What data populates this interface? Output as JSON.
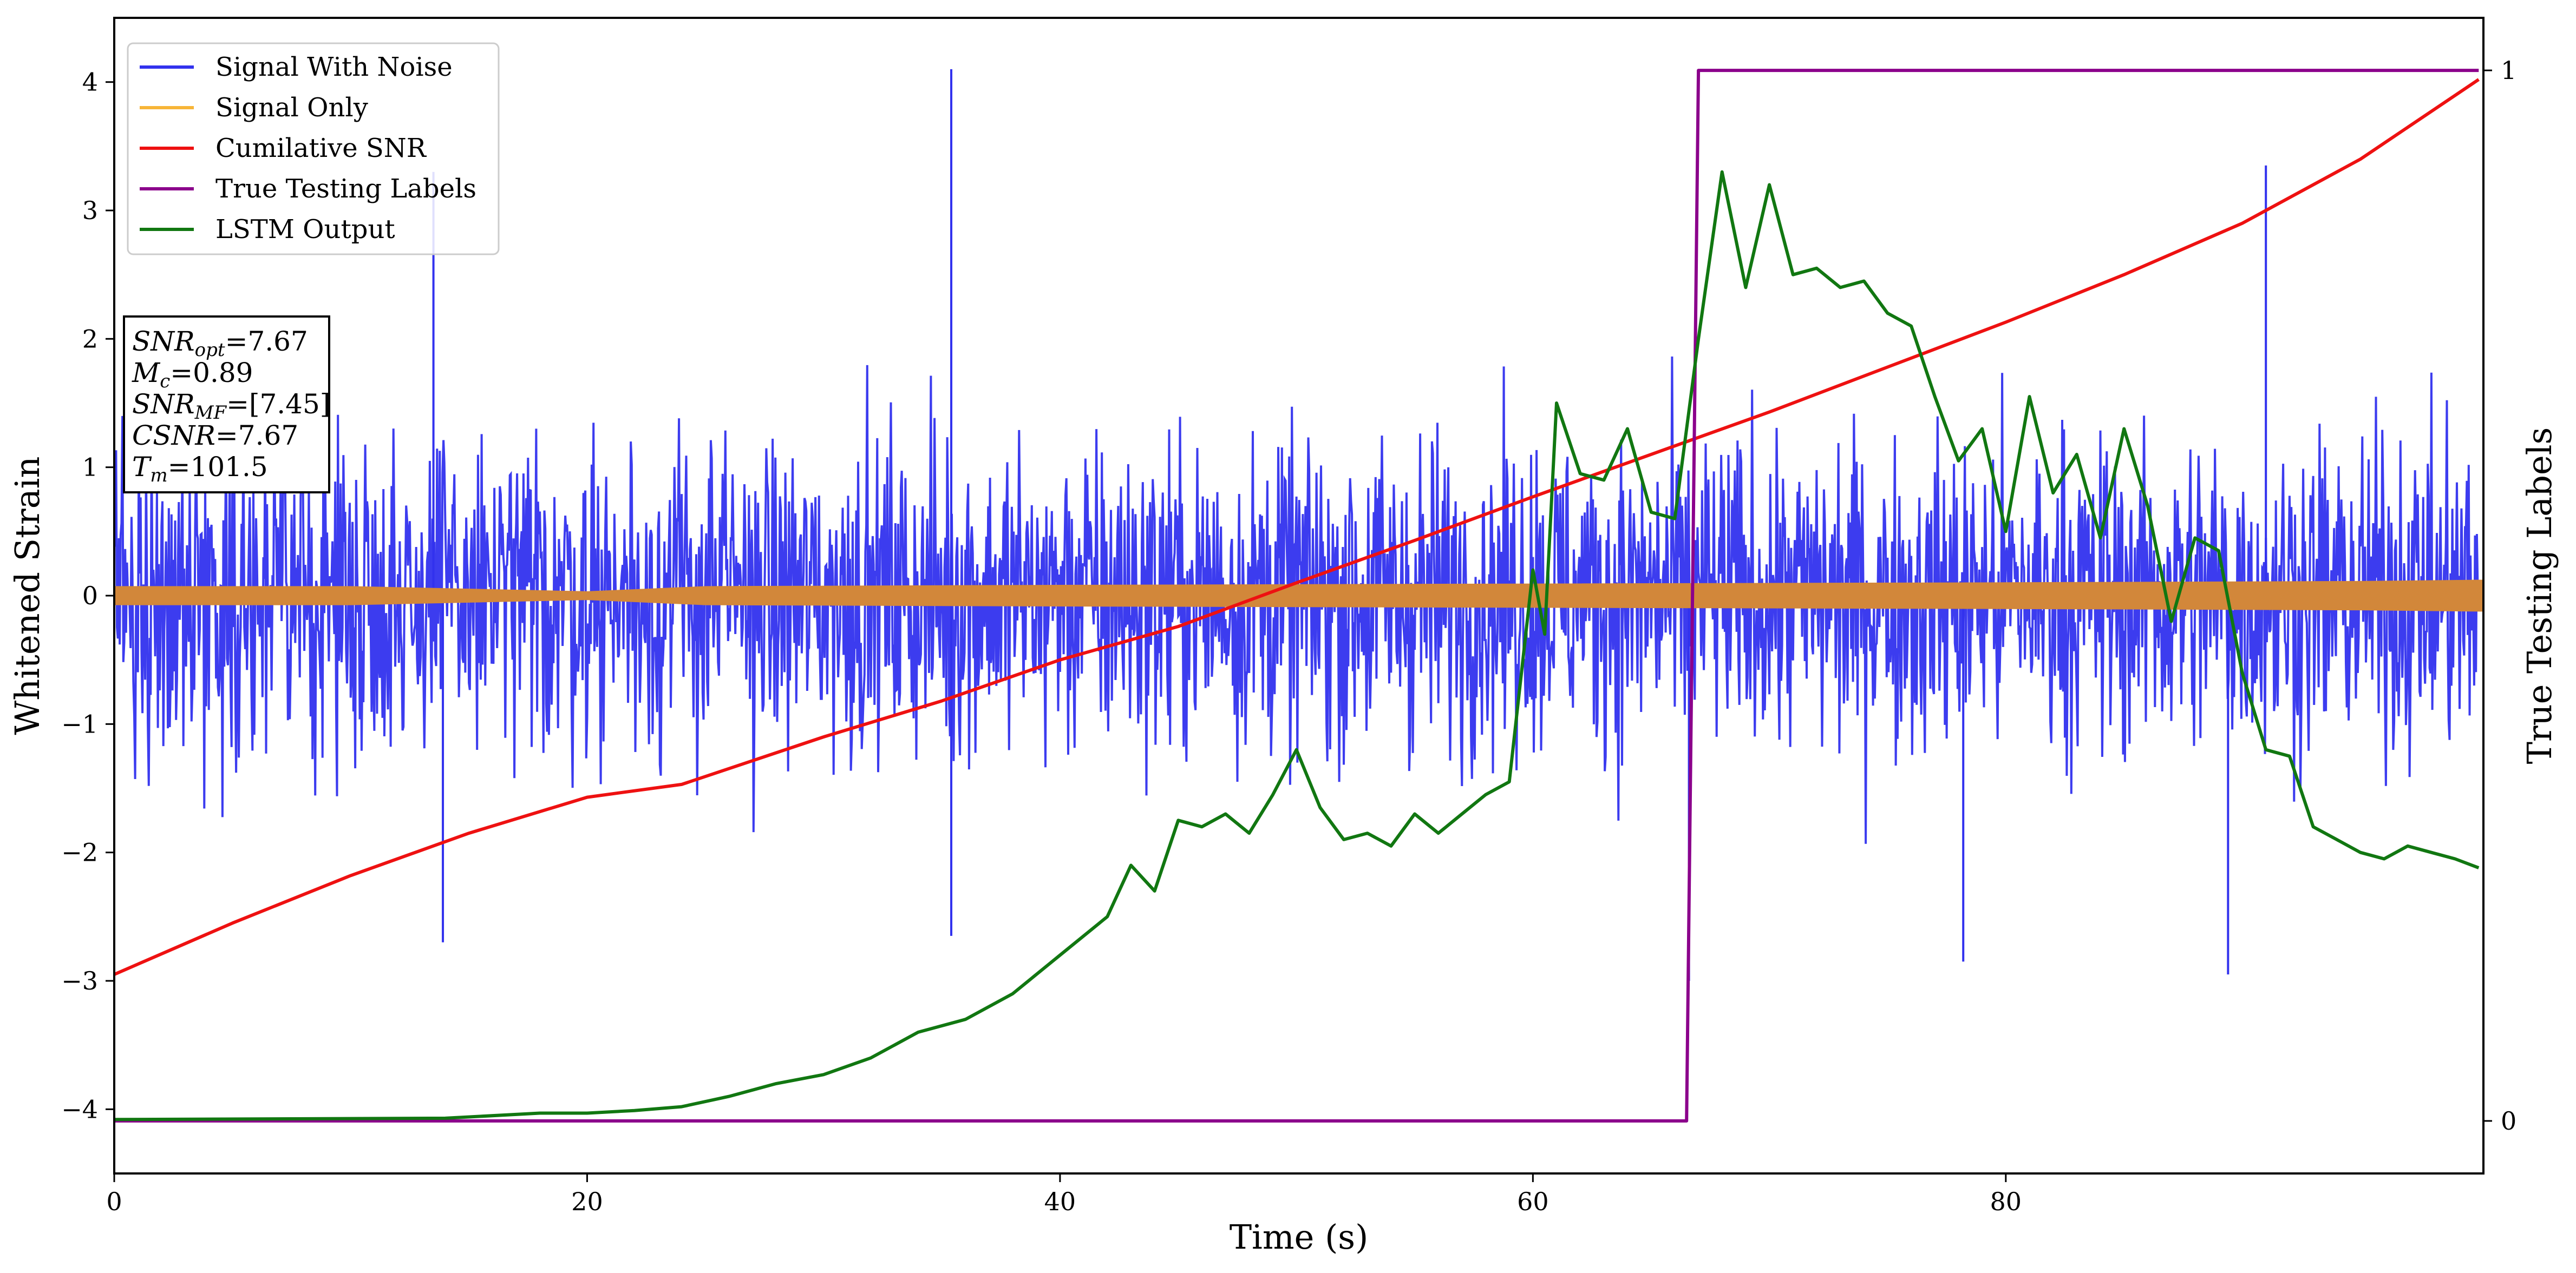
{
  "chart_data": {
    "type": "line",
    "xlabel": "Time (s)",
    "ylabel_left": "Whitened Strain",
    "ylabel_right": "True Testing Labels",
    "xlim": [
      0,
      100.2
    ],
    "ylim_left": [
      -4.5,
      4.5
    ],
    "ylim_right": [
      -0.05,
      1.05
    ],
    "x_ticks": [
      0,
      20,
      40,
      60,
      80
    ],
    "y_ticks_left": [
      -4,
      -3,
      -2,
      -1,
      0,
      1,
      2,
      3,
      4
    ],
    "y_ticks_right": [
      0,
      1
    ],
    "legend_position": "top-left",
    "legend": [
      {
        "label": "Signal With Noise",
        "color": "#3232ee"
      },
      {
        "label": "Signal Only",
        "color": "#f7b538"
      },
      {
        "label": "Cumilative SNR",
        "color": "#ee1111"
      },
      {
        "label": "True Testing Labels",
        "color": "#8b008b"
      },
      {
        "label": "LSTM Output",
        "color": "#117711"
      }
    ],
    "info_box": {
      "snr_opt_label": "SNR",
      "snr_opt_sub": "opt",
      "snr_opt_value": "=7.67",
      "mc_label": "M",
      "mc_sub": "c",
      "mc_value": "=0.89",
      "snr_mf_label": "SNR",
      "snr_mf_sub": "MF",
      "snr_mf_value": "=[7.45]",
      "csnr_label": "CSNR",
      "csnr_value": "=7.67",
      "tm_label": "T",
      "tm_sub": "m",
      "tm_value": "=101.5"
    },
    "series": [
      {
        "name": "Signal With Noise",
        "axis": "left",
        "style": "dense-noise",
        "color": "#3232ee",
        "typical_range": [
          -2.2,
          2.2
        ],
        "spikes": [
          {
            "x": 35.4,
            "y": 4.1
          },
          {
            "x": 91.0,
            "y": 3.35
          },
          {
            "x": 13.5,
            "y": 3.3
          },
          {
            "x": 35.4,
            "y": -2.65
          },
          {
            "x": 13.9,
            "y": -2.7
          },
          {
            "x": 66.6,
            "y": -3.0
          },
          {
            "x": 89.4,
            "y": -2.95
          },
          {
            "x": 78.2,
            "y": -2.85
          }
        ]
      },
      {
        "name": "Signal Only",
        "axis": "left",
        "style": "envelope",
        "color": "#f7b538",
        "blend_color": "#d2873a",
        "x": [
          0,
          10,
          20,
          25,
          40,
          60,
          80,
          95,
          100.2
        ],
        "amplitude": [
          0.07,
          0.07,
          0.03,
          0.07,
          0.08,
          0.09,
          0.1,
          0.11,
          0.12
        ]
      },
      {
        "name": "Cumilative SNR",
        "axis": "left",
        "color": "#ee1111",
        "x": [
          0,
          5,
          10,
          15,
          20,
          24,
          30,
          35,
          40,
          45,
          50,
          55,
          60,
          65,
          70,
          75,
          80,
          85,
          90,
          95,
          100
        ],
        "y": [
          -2.95,
          -2.55,
          -2.18,
          -1.85,
          -1.57,
          -1.47,
          -1.1,
          -0.82,
          -0.5,
          -0.24,
          0.1,
          0.43,
          0.77,
          1.1,
          1.43,
          1.78,
          2.13,
          2.5,
          2.9,
          3.4,
          4.02
        ]
      },
      {
        "name": "True Testing Labels",
        "axis": "right",
        "color": "#8b008b",
        "x": [
          0,
          66.5,
          67.0,
          100
        ],
        "y": [
          0,
          0,
          1,
          1
        ]
      },
      {
        "name": "LSTM Output",
        "axis": "left",
        "color": "#117711",
        "x": [
          0,
          14,
          18,
          20,
          22,
          24,
          26,
          28,
          30,
          32,
          34,
          36,
          38,
          40,
          42,
          43,
          44,
          45,
          46,
          47,
          48,
          49,
          50,
          51,
          52,
          53,
          54,
          55,
          56,
          57,
          58,
          59,
          60,
          60.5,
          61,
          62,
          63,
          64,
          65,
          66,
          67,
          68,
          69,
          70,
          71,
          72,
          73,
          74,
          75,
          76,
          77,
          78,
          79,
          80,
          81,
          82,
          83,
          84,
          85,
          86,
          87,
          88,
          89,
          90,
          91,
          92,
          93,
          94,
          95,
          96,
          97,
          98,
          99,
          100
        ],
        "y": [
          -4.08,
          -4.07,
          -4.03,
          -4.03,
          -4.01,
          -3.98,
          -3.9,
          -3.8,
          -3.73,
          -3.6,
          -3.4,
          -3.3,
          -3.1,
          -2.8,
          -2.5,
          -2.1,
          -2.3,
          -1.75,
          -1.8,
          -1.7,
          -1.85,
          -1.55,
          -1.2,
          -1.65,
          -1.9,
          -1.85,
          -1.95,
          -1.7,
          -1.85,
          -1.7,
          -1.55,
          -1.45,
          0.2,
          -0.3,
          1.5,
          0.95,
          0.9,
          1.3,
          0.65,
          0.6,
          2.0,
          3.3,
          2.4,
          3.2,
          2.5,
          2.55,
          2.4,
          2.45,
          2.2,
          2.1,
          1.55,
          1.05,
          1.3,
          0.5,
          1.55,
          0.8,
          1.1,
          0.45,
          1.3,
          0.7,
          -0.2,
          0.45,
          0.35,
          -0.6,
          -1.2,
          -1.25,
          -1.8,
          -1.9,
          -2.0,
          -2.05,
          -1.95,
          -2.0,
          -2.05,
          -2.12
        ]
      }
    ]
  }
}
